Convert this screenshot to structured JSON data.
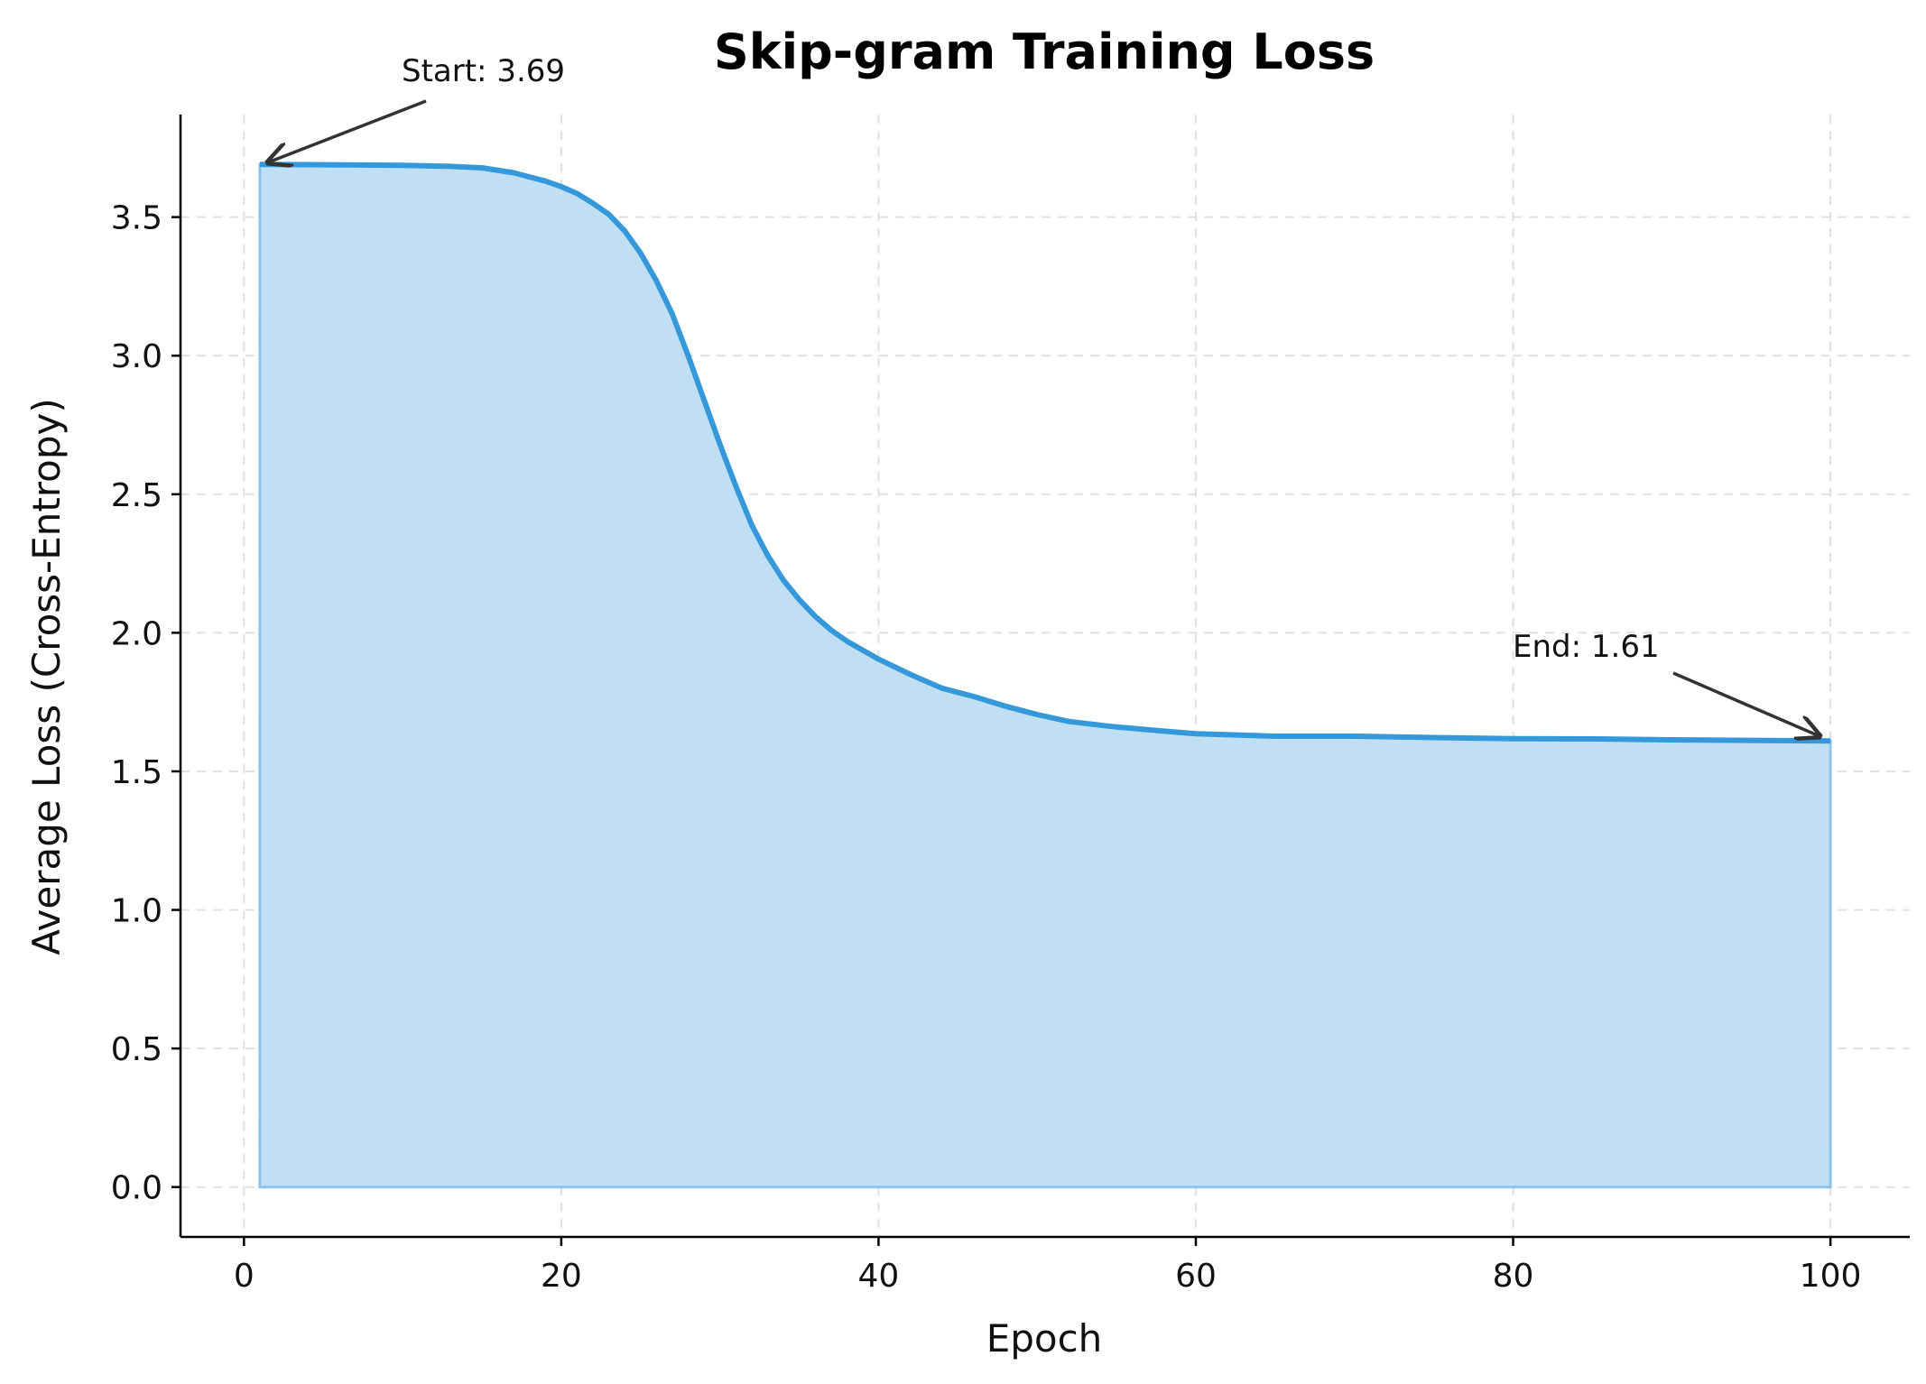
{
  "chart_data": {
    "type": "area",
    "title": "Skip-gram Training Loss",
    "xlabel": "Epoch",
    "ylabel": "Average Loss (Cross-Entropy)",
    "xlim": [
      -4,
      105
    ],
    "ylim": [
      -0.18,
      3.87
    ],
    "xticks": [
      "0",
      "20",
      "40",
      "60",
      "80",
      "100"
    ],
    "yticks": [
      "0.0",
      "0.5",
      "1.0",
      "1.5",
      "2.0",
      "2.5",
      "3.0",
      "3.5"
    ],
    "grid": true,
    "line_color": "#3498db",
    "fill_color": "#c0dff3",
    "series": [
      {
        "x": [
          1,
          5,
          10,
          13,
          15,
          17,
          18,
          19,
          20,
          21,
          22,
          23,
          24,
          25,
          26,
          27,
          28,
          29,
          30,
          31,
          32,
          33,
          34,
          35,
          36,
          37,
          38,
          40,
          42,
          44,
          46,
          48,
          50,
          52,
          55,
          58,
          60,
          65,
          70,
          75,
          80,
          85,
          90,
          95,
          100
        ],
        "y": [
          3.69,
          3.689,
          3.687,
          3.683,
          3.678,
          3.66,
          3.645,
          3.63,
          3.61,
          3.585,
          3.55,
          3.51,
          3.45,
          3.37,
          3.27,
          3.15,
          3.0,
          2.84,
          2.68,
          2.53,
          2.39,
          2.28,
          2.19,
          2.12,
          2.06,
          2.01,
          1.97,
          1.905,
          1.85,
          1.8,
          1.77,
          1.735,
          1.705,
          1.68,
          1.66,
          1.645,
          1.636,
          1.627,
          1.627,
          1.622,
          1.618,
          1.617,
          1.614,
          1.612,
          1.61
        ]
      }
    ],
    "annotations": [
      {
        "text": "Start: 3.69",
        "x": 1,
        "y": 3.69
      },
      {
        "text": "End: 1.61",
        "x": 100,
        "y": 1.61
      }
    ]
  }
}
